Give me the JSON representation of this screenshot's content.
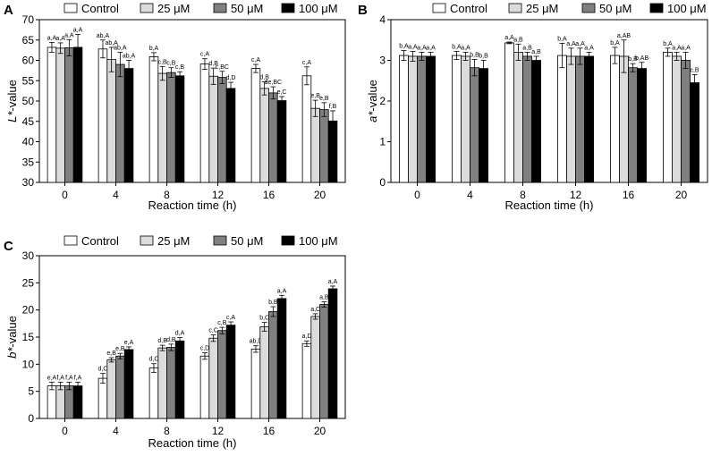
{
  "chart_data": [
    {
      "panel": "A",
      "type": "bar",
      "ylabel_italic": "L*",
      "ylabel_rest": "-value",
      "xlabel": "Reaction time (h)",
      "categories": [
        "0",
        "4",
        "8",
        "12",
        "16",
        "20"
      ],
      "ylim": [
        30,
        70
      ],
      "yticks": [
        30,
        35,
        40,
        45,
        50,
        55,
        60,
        65,
        70
      ],
      "series": [
        {
          "name": "Control",
          "color": "#ffffff",
          "values": [
            63.2,
            62.8,
            60.9,
            59.1,
            58.0,
            56.2
          ],
          "errors": [
            1.2,
            2.2,
            1.0,
            1.3,
            1.0,
            2.2
          ],
          "labels": [
            "a,A",
            "ab,A",
            "b,A",
            "c,A",
            "c,A",
            "c,A"
          ]
        },
        {
          "name": "25 μM",
          "color": "#dcdcdc",
          "values": [
            63.0,
            60.2,
            56.8,
            56.1,
            53.1,
            48.2
          ],
          "errors": [
            1.3,
            3.0,
            1.7,
            2.0,
            1.6,
            2.0
          ],
          "labels": [
            "a,A",
            "ab,A",
            "c,B",
            "d,B",
            "d,B",
            "e,B"
          ]
        },
        {
          "name": "50 μM",
          "color": "#808080",
          "values": [
            63.1,
            59.0,
            57.0,
            55.8,
            52.0,
            47.9
          ],
          "errors": [
            2.0,
            3.0,
            1.2,
            1.5,
            1.5,
            1.7
          ],
          "labels": [
            "a,A",
            "ab,A",
            "c,B",
            "c,BC",
            "de,BC",
            "e,B"
          ]
        },
        {
          "name": "100 μM",
          "color": "#000000",
          "values": [
            63.2,
            58.0,
            56.2,
            53.1,
            50.1,
            45.1
          ],
          "errors": [
            3.2,
            2.0,
            1.0,
            1.5,
            1.0,
            2.5
          ],
          "labels": [
            "a,A",
            "ab,A",
            "c,B",
            "d,D",
            "e,C",
            "f,B"
          ]
        }
      ]
    },
    {
      "panel": "B",
      "type": "bar",
      "ylabel_italic": "a*",
      "ylabel_rest": "-value",
      "xlabel": "Reaction time (h)",
      "categories": [
        "0",
        "4",
        "8",
        "12",
        "16",
        "20"
      ],
      "ylim": [
        0,
        4
      ],
      "yticks": [
        0,
        1,
        2,
        3,
        4
      ],
      "series": [
        {
          "name": "Control",
          "color": "#ffffff",
          "values": [
            3.12,
            3.12,
            3.43,
            3.12,
            3.12,
            3.2
          ],
          "errors": [
            0.12,
            0.1,
            0.02,
            0.3,
            0.2,
            0.1
          ],
          "labels": [
            "b,A",
            "b,A",
            "a,A",
            "b,A",
            "b,A",
            "b,A"
          ]
        },
        {
          "name": "25 μM",
          "color": "#dcdcdc",
          "values": [
            3.1,
            3.1,
            3.2,
            3.1,
            3.1,
            3.1
          ],
          "errors": [
            0.12,
            0.1,
            0.2,
            0.2,
            0.4,
            0.1
          ],
          "labels": [
            "a,A",
            "a,A",
            "a,B",
            "a,A",
            "a,AB",
            "a,A"
          ]
        },
        {
          "name": "50 μM",
          "color": "#808080",
          "values": [
            3.1,
            2.82,
            3.1,
            3.1,
            2.82,
            3.0
          ],
          "errors": [
            0.1,
            0.2,
            0.1,
            0.2,
            0.1,
            0.2
          ],
          "labels": [
            "a,A",
            "b,B",
            "a,B",
            "a,A",
            "b,B",
            "a,A"
          ]
        },
        {
          "name": "100 μM",
          "color": "#000000",
          "values": [
            3.1,
            2.8,
            3.0,
            3.1,
            2.8,
            2.45
          ],
          "errors": [
            0.1,
            0.2,
            0.1,
            0.1,
            0.15,
            0.2
          ],
          "labels": [
            "a,A",
            "b,B",
            "a,B",
            "a,A",
            "b,AB",
            "c,B"
          ]
        }
      ]
    },
    {
      "panel": "C",
      "type": "bar",
      "ylabel_italic": "b*",
      "ylabel_rest": "-value",
      "xlabel": "Reaction time (h)",
      "categories": [
        "0",
        "4",
        "8",
        "12",
        "16",
        "20"
      ],
      "ylim": [
        0,
        30
      ],
      "yticks": [
        0,
        5,
        10,
        15,
        20,
        25,
        30
      ],
      "series": [
        {
          "name": "Control",
          "color": "#ffffff",
          "values": [
            6.0,
            7.4,
            9.3,
            11.5,
            12.8,
            13.8
          ],
          "errors": [
            0.7,
            0.9,
            0.8,
            0.6,
            0.6,
            0.5
          ],
          "labels": [
            "e,A",
            "d,C",
            "d,C",
            "c,D",
            "ab,D",
            "a,D"
          ]
        },
        {
          "name": "25 μM",
          "color": "#dcdcdc",
          "values": [
            6.0,
            10.8,
            13.0,
            14.8,
            16.9,
            18.8
          ],
          "errors": [
            0.7,
            0.4,
            0.5,
            0.6,
            0.8,
            0.5
          ],
          "labels": [
            "f,A",
            "e,B",
            "d,B",
            "c,C",
            "b,C",
            "a,C"
          ]
        },
        {
          "name": "50 μM",
          "color": "#808080",
          "values": [
            6.0,
            11.5,
            13.1,
            16.2,
            19.7,
            21.0
          ],
          "errors": [
            0.7,
            0.5,
            0.6,
            0.6,
            0.9,
            0.5
          ],
          "labels": [
            "f,A",
            "e,B",
            "d,B",
            "c,B",
            "b,B",
            "a,B"
          ]
        },
        {
          "name": "100 μM",
          "color": "#000000",
          "values": [
            6.0,
            12.7,
            14.3,
            17.2,
            22.1,
            23.9
          ],
          "errors": [
            0.7,
            0.5,
            0.6,
            0.6,
            0.6,
            0.5
          ],
          "labels": [
            "f,A",
            "e,A",
            "d,A",
            "c,A",
            "a,A",
            "a,A"
          ]
        }
      ]
    }
  ]
}
